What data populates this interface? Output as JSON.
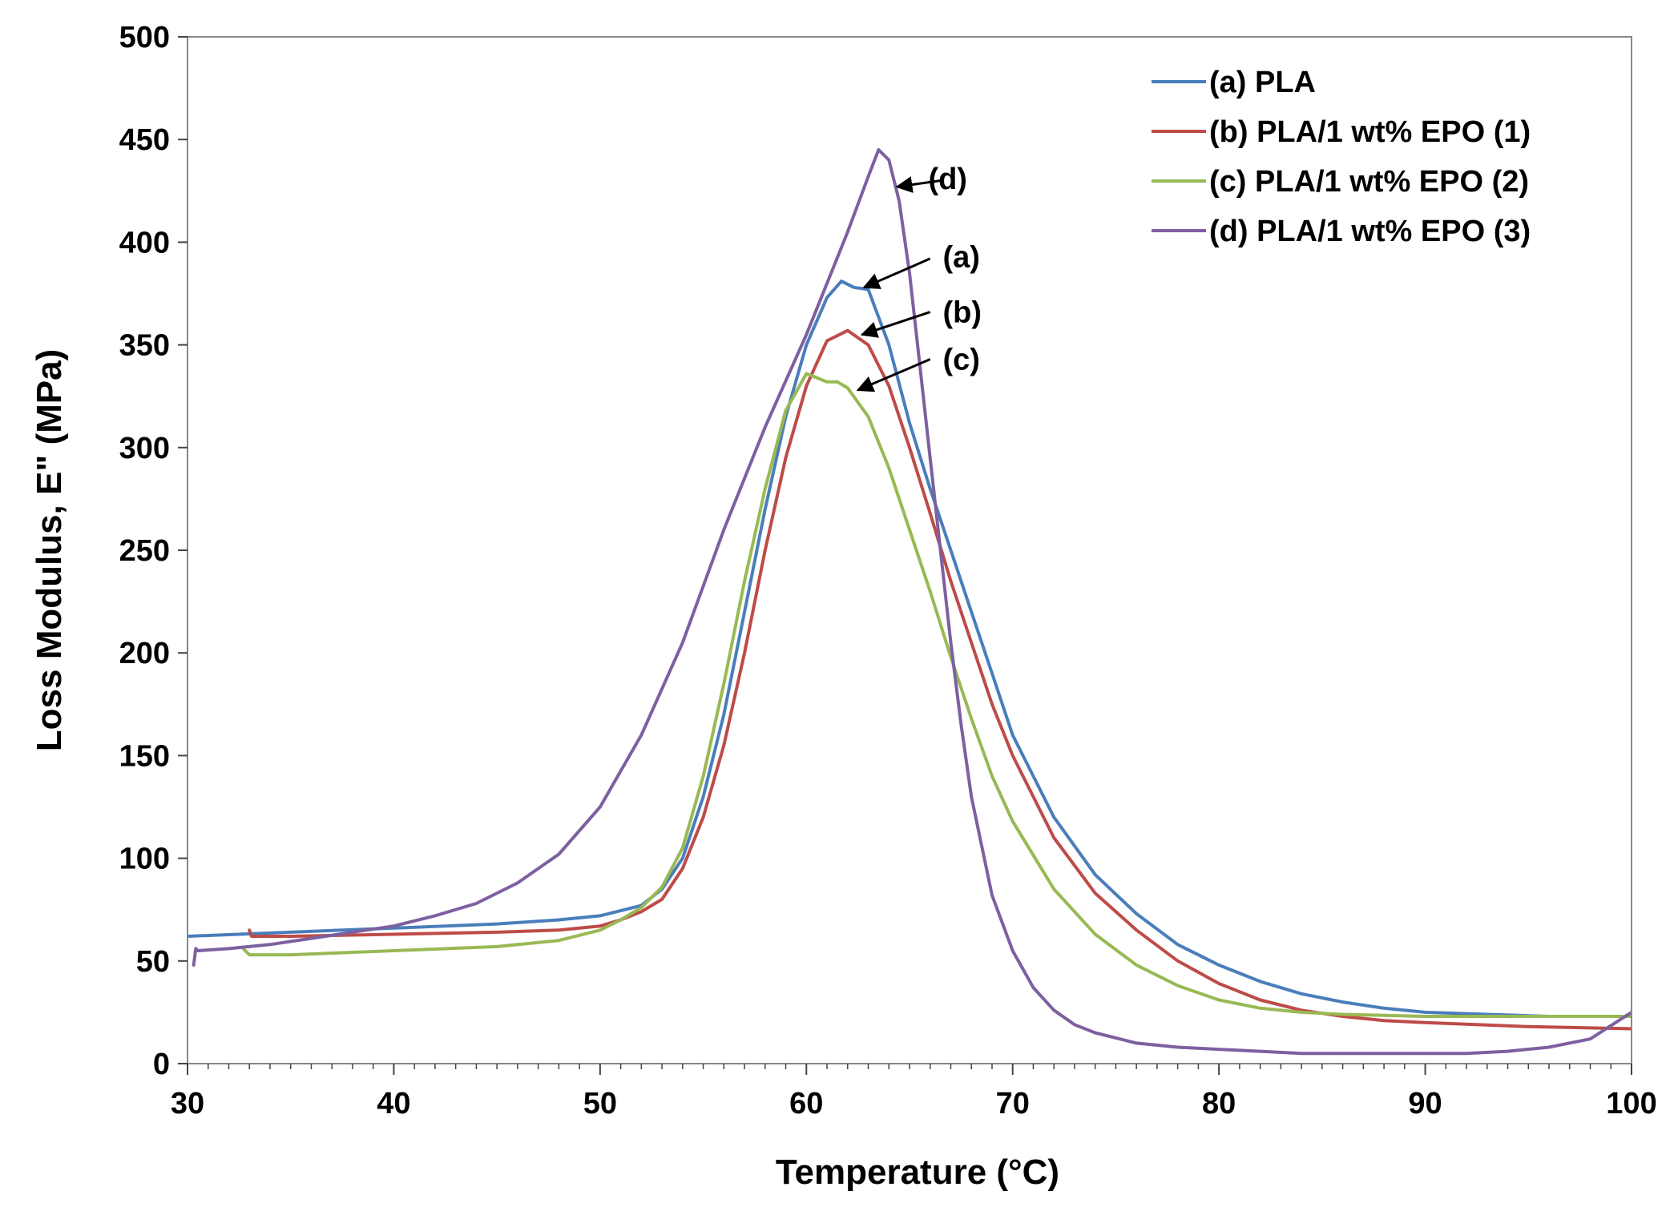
{
  "chart_data": {
    "type": "line",
    "title": "",
    "xlabel": "Temperature (°C)",
    "ylabel": "Loss Modulus, E\" (MPa)",
    "xlim": [
      30,
      100
    ],
    "ylim": [
      0,
      500
    ],
    "xticks": [
      30,
      40,
      50,
      60,
      70,
      80,
      90,
      100
    ],
    "yticks": [
      0,
      50,
      100,
      150,
      200,
      250,
      300,
      350,
      400,
      450,
      500
    ],
    "grid": false,
    "legend_position": "top-right",
    "series": [
      {
        "name": "(a) PLA",
        "color": "#4a7ebb",
        "x": [
          30,
          35,
          40,
          45,
          48,
          50,
          52,
          53,
          54,
          55,
          56,
          57,
          58,
          59,
          60,
          61,
          61.7,
          62.3,
          63,
          64,
          65,
          66,
          67,
          68,
          69,
          70,
          72,
          74,
          76,
          78,
          80,
          82,
          84,
          86,
          88,
          90,
          93,
          96,
          100
        ],
        "y": [
          62,
          64,
          66,
          68,
          70,
          72,
          77,
          85,
          100,
          130,
          170,
          220,
          270,
          315,
          350,
          373,
          381,
          378,
          377,
          350,
          312,
          280,
          250,
          220,
          190,
          160,
          120,
          92,
          73,
          58,
          48,
          40,
          34,
          30,
          27,
          25,
          24,
          23,
          23
        ]
      },
      {
        "name": "(b) PLA/1 wt% EPO (1)",
        "color": "#be4b48",
        "x": [
          33,
          33.1,
          35,
          40,
          45,
          48,
          50,
          51,
          52,
          53,
          54,
          55,
          56,
          57,
          58,
          59,
          60,
          61,
          62,
          63,
          64,
          65,
          66,
          67,
          68,
          69,
          70,
          72,
          74,
          76,
          78,
          80,
          82,
          84,
          86,
          88,
          90,
          95,
          100
        ],
        "y": [
          65,
          62,
          62,
          63,
          64,
          65,
          67,
          70,
          74,
          80,
          95,
          120,
          155,
          200,
          250,
          295,
          330,
          352,
          357,
          350,
          330,
          300,
          268,
          235,
          205,
          175,
          150,
          110,
          83,
          65,
          50,
          39,
          31,
          26,
          23,
          21,
          20,
          18,
          17
        ]
      },
      {
        "name": "(c) PLA/1 wt% EPO (2)",
        "color": "#98b954",
        "x": [
          32.7,
          33,
          35,
          40,
          45,
          48,
          50,
          51,
          52,
          53,
          54,
          55,
          56,
          57,
          58,
          59,
          60,
          60.5,
          61,
          61.5,
          62,
          63,
          64,
          65,
          66,
          67,
          68,
          69,
          70,
          72,
          74,
          76,
          78,
          80,
          82,
          84,
          86,
          90,
          95,
          100
        ],
        "y": [
          56,
          53,
          53,
          55,
          57,
          60,
          65,
          70,
          76,
          86,
          105,
          140,
          185,
          235,
          280,
          318,
          336,
          334,
          332,
          332,
          329,
          315,
          290,
          260,
          230,
          198,
          168,
          140,
          118,
          85,
          63,
          48,
          38,
          31,
          27,
          25,
          24,
          23,
          23,
          23
        ]
      },
      {
        "name": "(d) PLA/1 wt% EPO (3)",
        "color": "#7d60a0",
        "x": [
          30.3,
          30.4,
          30.5,
          32,
          34,
          36,
          38,
          40,
          42,
          44,
          46,
          48,
          50,
          52,
          54,
          56,
          58,
          60,
          62,
          63,
          63.5,
          64,
          64.5,
          65,
          65.5,
          66,
          66.5,
          67,
          67.5,
          68,
          69,
          70,
          71,
          72,
          73,
          74,
          76,
          78,
          80,
          82,
          84,
          86,
          88,
          90,
          92,
          94,
          96,
          98,
          100
        ],
        "y": [
          48,
          56,
          55,
          56,
          58,
          61,
          64,
          67,
          72,
          78,
          88,
          102,
          125,
          160,
          205,
          260,
          310,
          355,
          405,
          432,
          445,
          440,
          420,
          385,
          340,
          295,
          250,
          205,
          165,
          130,
          82,
          55,
          37,
          26,
          19,
          15,
          10,
          8,
          7,
          6,
          5,
          5,
          5,
          5,
          5,
          6,
          8,
          12,
          25
        ]
      }
    ],
    "annotations": [
      {
        "label": "(d)"
      },
      {
        "label": "(a)"
      },
      {
        "label": "(b)"
      },
      {
        "label": "(c)"
      }
    ]
  }
}
